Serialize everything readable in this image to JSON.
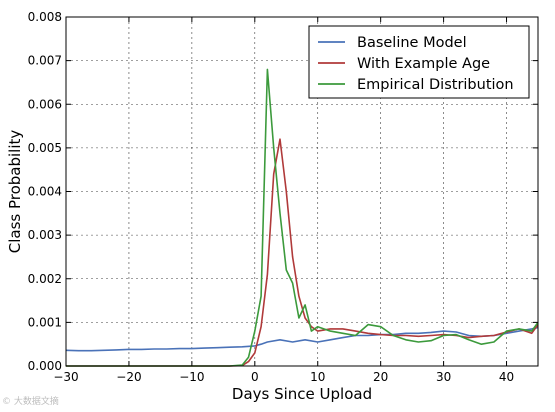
{
  "chart_data": {
    "type": "line",
    "title": "",
    "xlabel": "Days Since Upload",
    "ylabel": "Class Probability",
    "xlim": [
      -30,
      45
    ],
    "ylim": [
      0,
      0.008
    ],
    "xticks": [
      -30,
      -20,
      -10,
      0,
      10,
      20,
      30,
      40
    ],
    "xtick_labels": [
      "−30",
      "−20",
      "−10",
      "0",
      "10",
      "20",
      "30",
      "40"
    ],
    "yticks": [
      0,
      0.001,
      0.002,
      0.003,
      0.004,
      0.005,
      0.006,
      0.007,
      0.008
    ],
    "ytick_labels": [
      "0.000",
      "0.001",
      "0.002",
      "0.003",
      "0.004",
      "0.005",
      "0.006",
      "0.007",
      "0.008"
    ],
    "grid": true,
    "legend_position": "top-right",
    "series": [
      {
        "name": "Baseline Model",
        "color": "#4a72b8",
        "x": [
          -30,
          -28,
          -26,
          -24,
          -22,
          -20,
          -18,
          -16,
          -14,
          -12,
          -10,
          -8,
          -6,
          -4,
          -2,
          0,
          1,
          2,
          4,
          6,
          8,
          10,
          12,
          14,
          16,
          18,
          20,
          22,
          24,
          26,
          28,
          30,
          32,
          34,
          36,
          38,
          40,
          42,
          44,
          45
        ],
        "y": [
          0.00036,
          0.00035,
          0.00035,
          0.00036,
          0.00037,
          0.00038,
          0.00038,
          0.00039,
          0.00039,
          0.0004,
          0.0004,
          0.00041,
          0.00042,
          0.00043,
          0.00044,
          0.00046,
          0.0005,
          0.00055,
          0.0006,
          0.00055,
          0.0006,
          0.00055,
          0.0006,
          0.00065,
          0.0007,
          0.0007,
          0.00072,
          0.00072,
          0.00075,
          0.00075,
          0.00077,
          0.0008,
          0.00078,
          0.0007,
          0.00068,
          0.0007,
          0.00075,
          0.0008,
          0.00085,
          0.00088
        ]
      },
      {
        "name": "With Example Age",
        "color": "#b03a3a",
        "x": [
          -30,
          -20,
          -10,
          -4,
          -2,
          -1,
          0,
          1,
          2,
          3,
          4,
          5,
          6,
          7,
          8,
          9,
          10,
          12,
          14,
          16,
          18,
          20,
          22,
          24,
          26,
          28,
          30,
          32,
          34,
          36,
          38,
          40,
          42,
          44,
          45
        ],
        "y": [
          0,
          0,
          0,
          0,
          1e-05,
          0.0001,
          0.0003,
          0.0009,
          0.0021,
          0.0044,
          0.0052,
          0.004,
          0.0025,
          0.0016,
          0.0011,
          0.0009,
          0.0008,
          0.00085,
          0.00085,
          0.0008,
          0.00075,
          0.00072,
          0.0007,
          0.0007,
          0.00068,
          0.0007,
          0.00072,
          0.0007,
          0.00065,
          0.00068,
          0.0007,
          0.00078,
          0.00085,
          0.00075,
          0.00095
        ]
      },
      {
        "name": "Empirical Distribution",
        "color": "#3c9a3c",
        "x": [
          -30,
          -20,
          -10,
          -4,
          -2,
          -1,
          0,
          1,
          2,
          3,
          4,
          5,
          6,
          7,
          8,
          9,
          10,
          12,
          14,
          16,
          18,
          20,
          22,
          24,
          26,
          28,
          30,
          32,
          34,
          36,
          38,
          40,
          42,
          44,
          45
        ],
        "y": [
          0,
          0,
          0,
          0,
          2e-05,
          0.0002,
          0.0008,
          0.0016,
          0.0068,
          0.005,
          0.0035,
          0.0022,
          0.0019,
          0.0011,
          0.0014,
          0.0008,
          0.0009,
          0.0008,
          0.00075,
          0.0007,
          0.00095,
          0.0009,
          0.0007,
          0.0006,
          0.00055,
          0.00058,
          0.0007,
          0.00072,
          0.0006,
          0.0005,
          0.00055,
          0.0008,
          0.00085,
          0.0008,
          0.001
        ]
      }
    ]
  },
  "watermark": "© 大数据文摘"
}
